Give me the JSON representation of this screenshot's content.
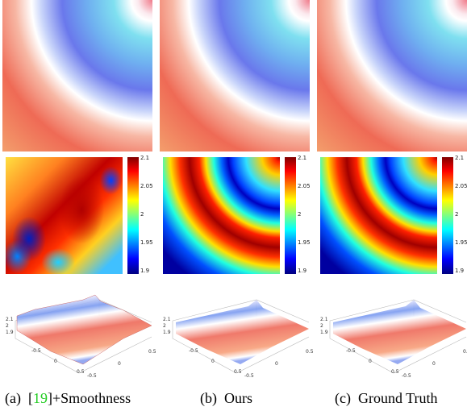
{
  "panels": [
    {
      "caption": {
        "label": "(a)",
        "parts": [
          "[",
          "19",
          "]+Smoothness"
        ]
      },
      "colorbar_ticks": [
        "2.1",
        "2.05",
        "2",
        "1.95",
        "1.9"
      ],
      "surface": {
        "z_ticks": [
          "2.1",
          "2",
          "1.9"
        ],
        "x_ticks": [
          "-0.5",
          "0",
          "0.5"
        ],
        "y_ticks": [
          "-0.5",
          "0",
          "0.5"
        ]
      }
    },
    {
      "caption": {
        "label": "(b)",
        "parts": [
          "Ours"
        ]
      },
      "colorbar_ticks": [
        "2.1",
        "2.05",
        "2",
        "1.95",
        "1.9"
      ],
      "surface": {
        "z_ticks": [
          "2.1",
          "2",
          "1.9"
        ],
        "x_ticks": [
          "-0.5",
          "0",
          "0.5"
        ],
        "y_ticks": [
          "-0.5",
          "0",
          "0.5"
        ]
      }
    },
    {
      "caption": {
        "label": "(c)",
        "parts": [
          "Ground Truth"
        ]
      },
      "colorbar_ticks": [
        "2.1",
        "2.05",
        "2",
        "1.95",
        "1.9"
      ],
      "surface": {
        "z_ticks": [
          "2.1",
          "2",
          "1.9"
        ],
        "x_ticks": [
          "-0.5",
          "0",
          "0.5"
        ],
        "y_ticks": [
          "-0.5",
          "0",
          "0.5"
        ]
      }
    }
  ]
}
